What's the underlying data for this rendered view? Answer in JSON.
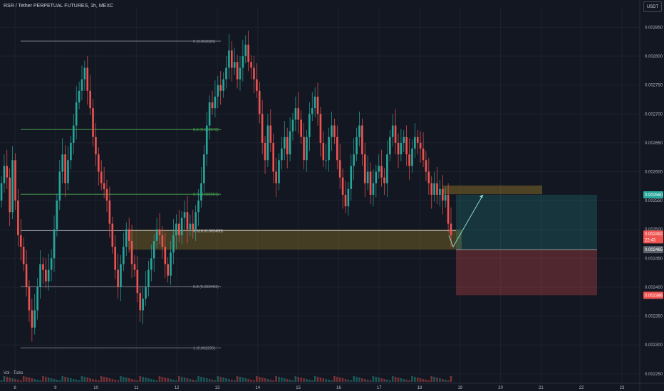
{
  "header": {
    "symbol": "RSR / Tether PERPETUAL FUTURES, 1h, MEXC",
    "currency": "USDT"
  },
  "indicator": {
    "volume_label": "Vol · Ticks"
  },
  "colors": {
    "background": "#131722",
    "up": "#26a69a",
    "down": "#ef5350",
    "grid": "#1e222d",
    "zone": "#c9a227",
    "fib_green": "#4caf50",
    "fib_gray": "#9598a1"
  },
  "chart_data": {
    "type": "candlestick",
    "x_ticks": [
      "8",
      "9",
      "10",
      "11",
      "12",
      "13",
      "14",
      "15",
      "16",
      "17",
      "18",
      "19",
      "20",
      "21",
      "22",
      "23"
    ],
    "y_ticks": [
      "0.002850",
      "0.002800",
      "0.002750",
      "0.002700",
      "0.002650",
      "0.002600",
      "0.002550",
      "0.002500",
      "0.002450",
      "0.002400",
      "0.002350",
      "0.002300",
      "0.002250"
    ],
    "ylim": [
      0.002235,
      0.002885
    ],
    "fib_levels": [
      {
        "label": "0 (0.002826)",
        "value": 0.002826,
        "color": "#9598a1"
      },
      {
        "label": "0.3 (0.002673)",
        "value": 0.002673,
        "color": "#4caf50"
      },
      {
        "label": "0.5 (0.002561)",
        "value": 0.002561,
        "color": "#4caf50"
      },
      {
        "label": "0.618 (0.002498)",
        "value": 0.002498,
        "color": "#d1d4dc"
      },
      {
        "label": "0.8 (0.002401)",
        "value": 0.002401,
        "color": "#9598a1"
      },
      {
        "label": "1 (0.002295)",
        "value": 0.002295,
        "color": "#9598a1"
      }
    ],
    "price_labels": [
      {
        "text": "0.002560",
        "value": 0.00256,
        "bg": "#26a69a"
      },
      {
        "text": "0.002492",
        "value": 0.002492,
        "bg": "#ef5350"
      },
      {
        "text": "22:43",
        "value": 0.002482,
        "bg": "#ef5350"
      },
      {
        "text": "0.002465",
        "value": 0.002465,
        "bg": "#5d606b"
      },
      {
        "text": "0.002386",
        "value": 0.002386,
        "bg": "#ef5350"
      }
    ],
    "position": {
      "entry": 0.002465,
      "target": 0.00256,
      "stop": 0.002386
    },
    "closes": [
      0.00258,
      0.00261,
      0.00259,
      0.00253,
      0.00262,
      0.00255,
      0.00249,
      0.00247,
      0.00244,
      0.0024,
      0.00236,
      0.00233,
      0.00236,
      0.0024,
      0.00244,
      0.00243,
      0.00241,
      0.00243,
      0.00245,
      0.0025,
      0.00255,
      0.0026,
      0.00263,
      0.00258,
      0.00262,
      0.00265,
      0.00268,
      0.00272,
      0.00274,
      0.00276,
      0.00278,
      0.00274,
      0.00271,
      0.00266,
      0.00263,
      0.0026,
      0.00258,
      0.00257,
      0.00255,
      0.00251,
      0.00247,
      0.00243,
      0.0024,
      0.00244,
      0.00247,
      0.0025,
      0.00248,
      0.00244,
      0.00243,
      0.00239,
      0.00236,
      0.00238,
      0.0024,
      0.00243,
      0.00245,
      0.00248,
      0.0025,
      0.00249,
      0.00247,
      0.00244,
      0.00242,
      0.00246,
      0.00249,
      0.00251,
      0.00249,
      0.00252,
      0.00253,
      0.0025,
      0.00251,
      0.0025,
      0.00253,
      0.00255,
      0.00258,
      0.00263,
      0.00268,
      0.00272,
      0.00271,
      0.00273,
      0.00275,
      0.00274,
      0.00276,
      0.00278,
      0.00281,
      0.00278,
      0.00279,
      0.00276,
      0.00278,
      0.0028,
      0.00282,
      0.00279,
      0.00278,
      0.00276,
      0.00274,
      0.0027,
      0.00265,
      0.00262,
      0.00268,
      0.00265,
      0.0026,
      0.00258,
      0.00262,
      0.00264,
      0.00266,
      0.00263,
      0.00267,
      0.00269,
      0.00271,
      0.00269,
      0.00266,
      0.00262,
      0.00266,
      0.0027,
      0.00271,
      0.00273,
      0.0027,
      0.00265,
      0.00262,
      0.00262,
      0.00266,
      0.00268,
      0.00266,
      0.00262,
      0.00259,
      0.00256,
      0.00254,
      0.00257,
      0.00261,
      0.00263,
      0.00266,
      0.00268,
      0.00263,
      0.00258,
      0.0026,
      0.00256,
      0.00258,
      0.0026,
      0.00261,
      0.00259,
      0.00258,
      0.00263,
      0.00266,
      0.00268,
      0.00265,
      0.00263,
      0.00265,
      0.00266,
      0.00263,
      0.00261,
      0.00264,
      0.00266,
      0.00265,
      0.00264,
      0.00262,
      0.0026,
      0.00258,
      0.00256,
      0.00258,
      0.00256,
      0.00257,
      0.00255,
      0.00256,
      0.00251,
      0.00249
    ]
  }
}
